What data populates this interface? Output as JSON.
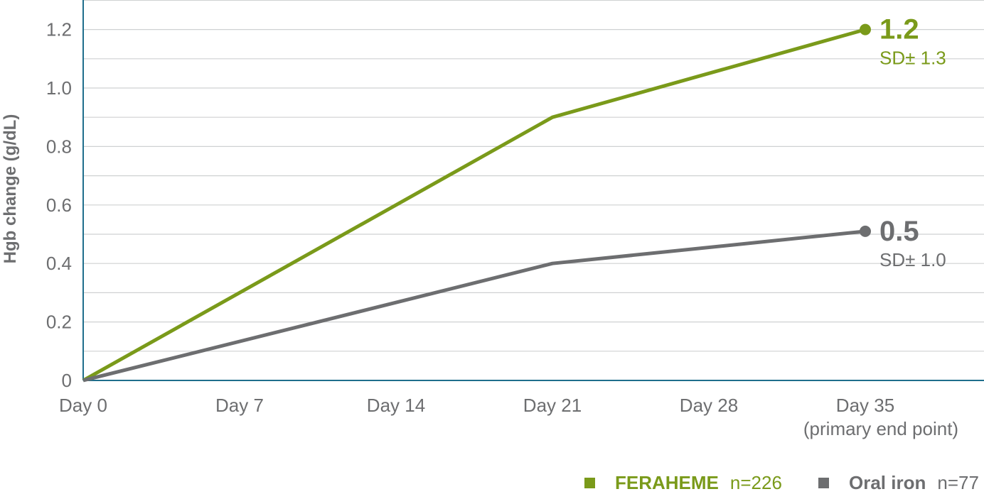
{
  "chart_data": {
    "type": "line",
    "title": "",
    "xlabel": "",
    "ylabel": "Hgb change (g/dL)",
    "x_categories": [
      "Day 0",
      "Day 7",
      "Day 14",
      "Day 21",
      "Day 28",
      "Day 35"
    ],
    "x_sublabels": {
      "Day 35": "(primary end point)"
    },
    "y_ticks": [
      "0",
      "0.2",
      "0.4",
      "0.6",
      "0.8",
      "1.0",
      "1.2"
    ],
    "ylim": [
      0,
      1.3
    ],
    "grid": true,
    "series": [
      {
        "name": "FERAHEME",
        "n_label": "n=226",
        "color": "#7a9a1a",
        "points": [
          {
            "x": "Day 0",
            "y": 0
          },
          {
            "x": "Day 21",
            "y": 0.9
          },
          {
            "x": "Day 35",
            "y": 1.2
          }
        ],
        "end_value_label": "1.2",
        "end_sd_label": "SD± 1.3"
      },
      {
        "name": "Oral iron",
        "n_label": "n=77",
        "color": "#6d6e70",
        "points": [
          {
            "x": "Day 0",
            "y": 0
          },
          {
            "x": "Day 21",
            "y": 0.4
          },
          {
            "x": "Day 35",
            "y": 0.51
          }
        ],
        "end_value_label": "0.5",
        "end_sd_label": "SD± 1.0"
      }
    ],
    "legend_position": "bottom-right"
  }
}
